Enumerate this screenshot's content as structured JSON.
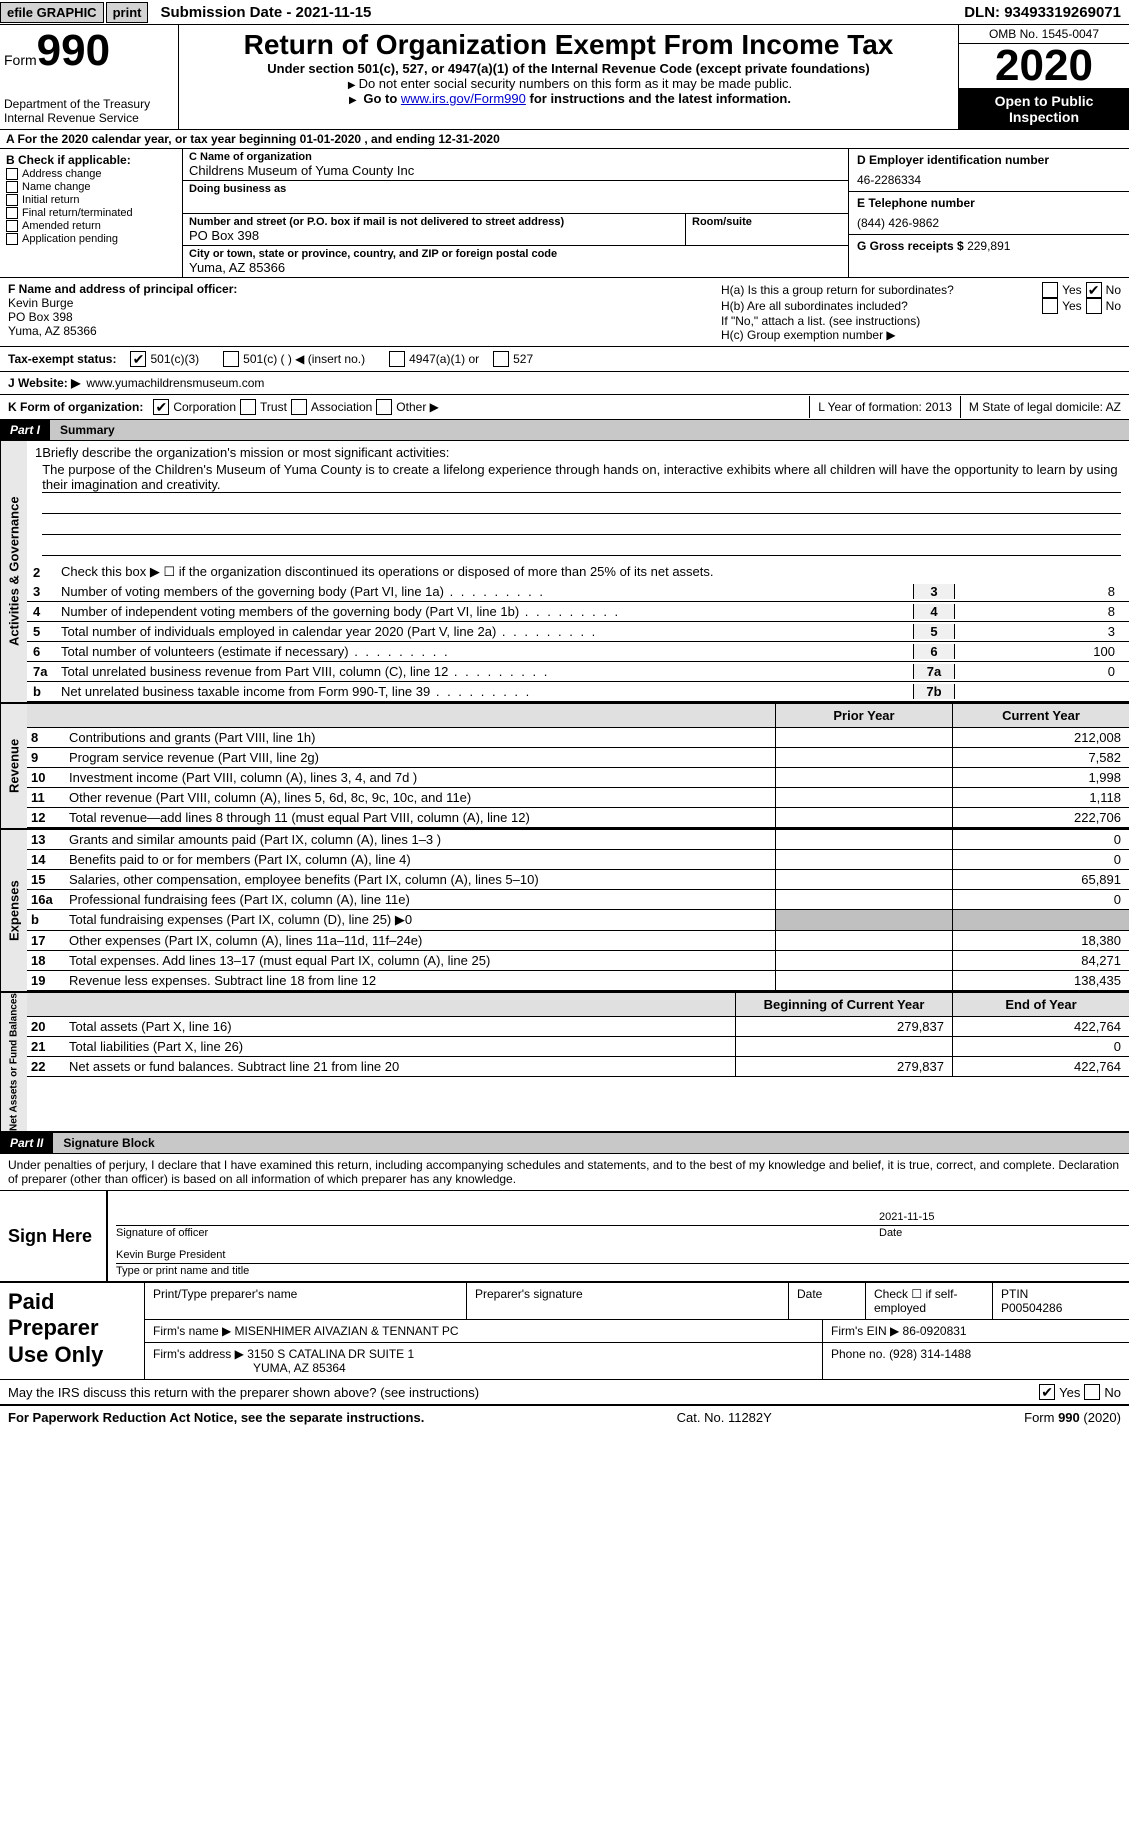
{
  "topbar": {
    "efile": "efile GRAPHIC",
    "print": "print",
    "submission": "Submission Date - 2021-11-15",
    "dln": "DLN: 93493319269071"
  },
  "header": {
    "form_label": "Form",
    "form_number": "990",
    "title": "Return of Organization Exempt From Income Tax",
    "subtitle": "Under section 501(c), 527, or 4947(a)(1) of the Internal Revenue Code (except private foundations)",
    "note1": "Do not enter social security numbers on this form as it may be made public.",
    "note2_pre": "Go to ",
    "note2_link": "www.irs.gov/Form990",
    "note2_post": " for instructions and the latest information.",
    "dept": "Department of the Treasury",
    "irs": "Internal Revenue Service",
    "omb": "OMB No. 1545-0047",
    "year": "2020",
    "open": "Open to Public Inspection"
  },
  "rowA": "A For the 2020 calendar year, or tax year beginning 01-01-2020   , and ending 12-31-2020",
  "colB": {
    "label": "B Check if applicable:",
    "items": [
      "Address change",
      "Name change",
      "Initial return",
      "Final return/terminated",
      "Amended return",
      "Application pending"
    ]
  },
  "colC": {
    "c_label": "C Name of organization",
    "c_name": "Childrens Museum of Yuma County Inc",
    "dba_label": "Doing business as",
    "addr_label": "Number and street (or P.O. box if mail is not delivered to street address)",
    "addr_val": "PO Box 398",
    "room_label": "Room/suite",
    "city_label": "City or town, state or province, country, and ZIP or foreign postal code",
    "city_val": "Yuma, AZ  85366"
  },
  "colD": {
    "d_label": "D Employer identification number",
    "d_val": "46-2286334",
    "e_label": "E Telephone number",
    "e_val": "(844) 426-9862",
    "g_label": "G Gross receipts $",
    "g_val": "229,891"
  },
  "rowF": {
    "label": "F  Name and address of principal officer:",
    "name": "Kevin Burge",
    "addr1": "PO Box 398",
    "addr2": "Yuma, AZ  85366"
  },
  "rowH": {
    "ha": "H(a) Is this a group return for subordinates?",
    "hb": "H(b) Are all subordinates included?",
    "hb_note": "If \"No,\" attach a list. (see instructions)",
    "hc": "H(c) Group exemption number ▶",
    "yes": "Yes",
    "no": "No"
  },
  "rowI": {
    "label": "Tax-exempt status:",
    "opts": [
      "501(c)(3)",
      "501(c) (  ) ◀ (insert no.)",
      "4947(a)(1) or",
      "527"
    ]
  },
  "rowJ": {
    "label": "J Website: ▶",
    "val": "www.yumachildrensmuseum.com"
  },
  "rowK": {
    "label": "K Form of organization:",
    "opts": [
      "Corporation",
      "Trust",
      "Association",
      "Other ▶"
    ],
    "L": "L Year of formation: 2013",
    "M": "M State of legal domicile: AZ"
  },
  "part1": {
    "tag": "Part I",
    "title": "Summary",
    "sidebar1": "Activities & Governance",
    "sidebar2": "Revenue",
    "sidebar3": "Expenses",
    "sidebar4": "Net Assets or Fund Balances",
    "line1_label": "Briefly describe the organization's mission or most significant activities:",
    "line1_text": "The purpose of the Children's Museum of Yuma County is to create a lifelong experience through hands on, interactive exhibits where all children will have the opportunity to learn by using their imagination and creativity.",
    "line2": "Check this box ▶ ☐  if the organization discontinued its operations or disposed of more than 25% of its net assets.",
    "lines_gov": [
      {
        "n": "3",
        "d": "Number of voting members of the governing body (Part VI, line 1a)",
        "b": "3",
        "v": "8"
      },
      {
        "n": "4",
        "d": "Number of independent voting members of the governing body (Part VI, line 1b)",
        "b": "4",
        "v": "8"
      },
      {
        "n": "5",
        "d": "Total number of individuals employed in calendar year 2020 (Part V, line 2a)",
        "b": "5",
        "v": "3"
      },
      {
        "n": "6",
        "d": "Total number of volunteers (estimate if necessary)",
        "b": "6",
        "v": "100"
      },
      {
        "n": "7a",
        "d": "Total unrelated business revenue from Part VIII, column (C), line 12",
        "b": "7a",
        "v": "0"
      },
      {
        "n": "b",
        "d": "Net unrelated business taxable income from Form 990-T, line 39",
        "b": "7b",
        "v": ""
      }
    ],
    "header_prior": "Prior Year",
    "header_current": "Current Year",
    "lines_rev": [
      {
        "n": "8",
        "d": "Contributions and grants (Part VIII, line 1h)",
        "p": "",
        "c": "212,008"
      },
      {
        "n": "9",
        "d": "Program service revenue (Part VIII, line 2g)",
        "p": "",
        "c": "7,582"
      },
      {
        "n": "10",
        "d": "Investment income (Part VIII, column (A), lines 3, 4, and 7d )",
        "p": "",
        "c": "1,998"
      },
      {
        "n": "11",
        "d": "Other revenue (Part VIII, column (A), lines 5, 6d, 8c, 9c, 10c, and 11e)",
        "p": "",
        "c": "1,118"
      },
      {
        "n": "12",
        "d": "Total revenue—add lines 8 through 11 (must equal Part VIII, column (A), line 12)",
        "p": "",
        "c": "222,706"
      }
    ],
    "lines_exp": [
      {
        "n": "13",
        "d": "Grants and similar amounts paid (Part IX, column (A), lines 1–3 )",
        "p": "",
        "c": "0"
      },
      {
        "n": "14",
        "d": "Benefits paid to or for members (Part IX, column (A), line 4)",
        "p": "",
        "c": "0"
      },
      {
        "n": "15",
        "d": "Salaries, other compensation, employee benefits (Part IX, column (A), lines 5–10)",
        "p": "",
        "c": "65,891"
      },
      {
        "n": "16a",
        "d": "Professional fundraising fees (Part IX, column (A), line 11e)",
        "p": "",
        "c": "0"
      },
      {
        "n": "b",
        "d": "Total fundraising expenses (Part IX, column (D), line 25) ▶0",
        "p": "shade",
        "c": "shade"
      },
      {
        "n": "17",
        "d": "Other expenses (Part IX, column (A), lines 11a–11d, 11f–24e)",
        "p": "",
        "c": "18,380"
      },
      {
        "n": "18",
        "d": "Total expenses. Add lines 13–17 (must equal Part IX, column (A), line 25)",
        "p": "",
        "c": "84,271"
      },
      {
        "n": "19",
        "d": "Revenue less expenses. Subtract line 18 from line 12",
        "p": "",
        "c": "138,435"
      }
    ],
    "header_begin": "Beginning of Current Year",
    "header_end": "End of Year",
    "lines_net": [
      {
        "n": "20",
        "d": "Total assets (Part X, line 16)",
        "p": "279,837",
        "c": "422,764"
      },
      {
        "n": "21",
        "d": "Total liabilities (Part X, line 26)",
        "p": "",
        "c": "0"
      },
      {
        "n": "22",
        "d": "Net assets or fund balances. Subtract line 21 from line 20",
        "p": "279,837",
        "c": "422,764"
      }
    ]
  },
  "part2": {
    "tag": "Part II",
    "title": "Signature Block",
    "text": "Under penalties of perjury, I declare that I have examined this return, including accompanying schedules and statements, and to the best of my knowledge and belief, it is true, correct, and complete. Declaration of preparer (other than officer) is based on all information of which preparer has any knowledge."
  },
  "sign": {
    "label": "Sign Here",
    "sig_label": "Signature of officer",
    "date_label": "Date",
    "date_val": "2021-11-15",
    "name": "Kevin Burge  President",
    "name_label": "Type or print name and title"
  },
  "preparer": {
    "label": "Paid Preparer Use Only",
    "name_label": "Print/Type preparer's name",
    "sig_label": "Preparer's signature",
    "date_label": "Date",
    "check_label": "Check ☐ if self-employed",
    "ptin_label": "PTIN",
    "ptin_val": "P00504286",
    "firm_name_label": "Firm's name   ▶",
    "firm_name": "MISENHIMER AIVAZIAN & TENNANT PC",
    "firm_ein_label": "Firm's EIN ▶",
    "firm_ein": "86-0920831",
    "firm_addr_label": "Firm's address ▶",
    "firm_addr1": "3150 S CATALINA DR SUITE 1",
    "firm_addr2": "YUMA, AZ  85364",
    "phone_label": "Phone no.",
    "phone": "(928) 314-1488"
  },
  "irs_discuss": "May the IRS discuss this return with the preparer shown above? (see instructions)",
  "footer": {
    "left": "For Paperwork Reduction Act Notice, see the separate instructions.",
    "center": "Cat. No. 11282Y",
    "right": "Form 990 (2020)"
  }
}
